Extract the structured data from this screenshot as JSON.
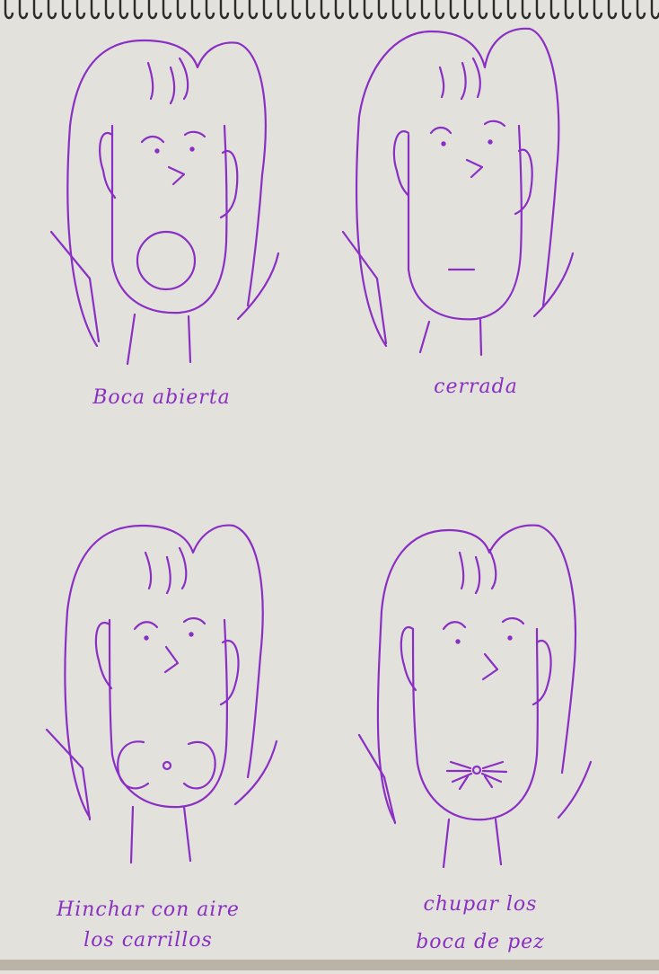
{
  "ink_color": "#8a2fc4",
  "paper_color": "#e3e1dc",
  "binding_icon": "spiral-binding",
  "faces": [
    {
      "id": "open",
      "mouth": "open-circle",
      "lines": [
        "Boca abierta"
      ]
    },
    {
      "id": "closed",
      "mouth": "closed-line",
      "lines": [
        "cerrada"
      ]
    },
    {
      "id": "puffed",
      "mouth": "puffed-cheeks",
      "lines": [
        "Hinchar con aire",
        "los carrillos"
      ]
    },
    {
      "id": "fish",
      "mouth": "fish-pucker",
      "lines": [
        "chupar los",
        "boca de pez"
      ]
    }
  ]
}
